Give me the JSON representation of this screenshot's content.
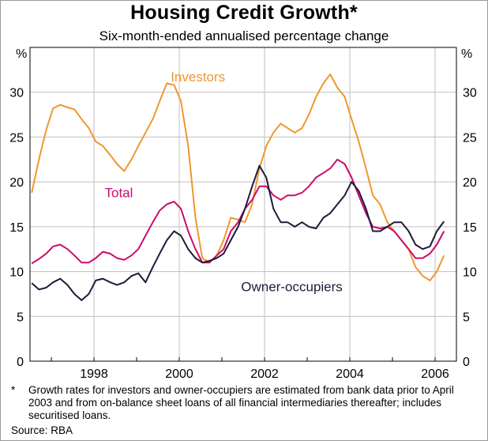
{
  "chart_data": {
    "type": "line",
    "title": "Housing Credit Growth*",
    "subtitle": "Six-month-ended annualised percentage change",
    "ylabel_left": "%",
    "ylabel_right": "%",
    "ylim": [
      0,
      35
    ],
    "yticks": [
      0,
      5,
      10,
      15,
      20,
      25,
      30
    ],
    "xlim": [
      1996.5,
      2006.5
    ],
    "xticks": [
      1998,
      2000,
      2002,
      2004,
      2006
    ],
    "xtick_labels": [
      "1998",
      "2000",
      "2002",
      "2004",
      "2006"
    ],
    "grid": true,
    "series": [
      {
        "name": "Investors",
        "color": "#F0962F",
        "label_x": 1999.8,
        "label_y": 31.2,
        "x": [
          1996.54,
          1996.71,
          1996.88,
          1997.04,
          1997.21,
          1997.38,
          1997.54,
          1997.71,
          1997.88,
          1998.04,
          1998.21,
          1998.38,
          1998.54,
          1998.71,
          1998.88,
          1999.04,
          1999.21,
          1999.38,
          1999.54,
          1999.71,
          1999.88,
          2000.04,
          2000.21,
          2000.38,
          2000.54,
          2000.71,
          2000.88,
          2001.04,
          2001.21,
          2001.38,
          2001.54,
          2001.71,
          2001.88,
          2002.04,
          2002.21,
          2002.38,
          2002.54,
          2002.71,
          2002.88,
          2003.04,
          2003.21,
          2003.38,
          2003.54,
          2003.71,
          2003.88,
          2004.04,
          2004.21,
          2004.38,
          2004.54,
          2004.71,
          2004.88,
          2005.04,
          2005.21,
          2005.38,
          2005.54,
          2005.71,
          2005.88,
          2006.04,
          2006.21
        ],
        "values": [
          18.8,
          22.5,
          25.8,
          28.2,
          28.6,
          28.3,
          28.1,
          27.0,
          26.0,
          24.5,
          24.0,
          23.0,
          22.0,
          21.2,
          22.5,
          24.0,
          25.5,
          27.0,
          29.0,
          31.0,
          30.8,
          29.0,
          24.0,
          16.0,
          11.5,
          11.0,
          11.8,
          13.5,
          16.0,
          15.8,
          15.5,
          17.5,
          21.5,
          24.0,
          25.5,
          26.5,
          26.0,
          25.5,
          26.0,
          27.5,
          29.5,
          31.0,
          32.0,
          30.5,
          29.5,
          27.0,
          24.5,
          21.5,
          18.5,
          17.5,
          15.5,
          14.5,
          13.5,
          12.5,
          10.5,
          9.5,
          9.0,
          10.0,
          11.8
        ]
      },
      {
        "name": "Total",
        "color": "#CC0A6C",
        "label_x": 1998.25,
        "label_y": 18.3,
        "x": [
          1996.54,
          1996.71,
          1996.88,
          1997.04,
          1997.21,
          1997.38,
          1997.54,
          1997.71,
          1997.88,
          1998.04,
          1998.21,
          1998.38,
          1998.54,
          1998.71,
          1998.88,
          1999.04,
          1999.21,
          1999.38,
          1999.54,
          1999.71,
          1999.88,
          2000.04,
          2000.21,
          2000.38,
          2000.54,
          2000.71,
          2000.88,
          2001.04,
          2001.21,
          2001.38,
          2001.54,
          2001.71,
          2001.88,
          2002.04,
          2002.21,
          2002.38,
          2002.54,
          2002.71,
          2002.88,
          2003.04,
          2003.21,
          2003.38,
          2003.54,
          2003.71,
          2003.88,
          2004.04,
          2004.21,
          2004.38,
          2004.54,
          2004.71,
          2004.88,
          2005.04,
          2005.21,
          2005.38,
          2005.54,
          2005.71,
          2005.88,
          2006.04,
          2006.21
        ],
        "values": [
          10.9,
          11.4,
          12.0,
          12.8,
          13.0,
          12.5,
          11.8,
          11.0,
          11.0,
          11.5,
          12.2,
          12.0,
          11.5,
          11.3,
          11.8,
          12.5,
          14.0,
          15.5,
          16.8,
          17.5,
          17.8,
          17.0,
          14.5,
          12.5,
          11.0,
          11.0,
          11.8,
          12.5,
          14.5,
          15.5,
          17.0,
          18.0,
          19.5,
          19.5,
          18.5,
          18.0,
          18.5,
          18.5,
          18.8,
          19.5,
          20.5,
          21.0,
          21.5,
          22.5,
          22.0,
          20.5,
          18.5,
          16.5,
          15.0,
          14.8,
          15.0,
          14.5,
          13.5,
          12.5,
          11.5,
          11.5,
          12.0,
          13.0,
          14.5
        ]
      },
      {
        "name": "Owner-occupiers",
        "color": "#1B1B3A",
        "label_x": 2001.45,
        "label_y": 7.8,
        "x": [
          1996.54,
          1996.71,
          1996.88,
          1997.04,
          1997.21,
          1997.38,
          1997.54,
          1997.71,
          1997.88,
          1998.04,
          1998.21,
          1998.38,
          1998.54,
          1998.71,
          1998.88,
          1999.04,
          1999.21,
          1999.38,
          1999.54,
          1999.71,
          1999.88,
          2000.04,
          2000.21,
          2000.38,
          2000.54,
          2000.71,
          2000.88,
          2001.04,
          2001.21,
          2001.38,
          2001.54,
          2001.71,
          2001.88,
          2002.04,
          2002.21,
          2002.38,
          2002.54,
          2002.71,
          2002.88,
          2003.04,
          2003.21,
          2003.38,
          2003.54,
          2003.71,
          2003.88,
          2004.04,
          2004.21,
          2004.38,
          2004.54,
          2004.71,
          2004.88,
          2005.04,
          2005.21,
          2005.38,
          2005.54,
          2005.71,
          2005.88,
          2006.04,
          2006.21
        ],
        "values": [
          8.7,
          8.0,
          8.2,
          8.8,
          9.2,
          8.5,
          7.5,
          6.8,
          7.5,
          9.0,
          9.2,
          8.8,
          8.5,
          8.8,
          9.5,
          9.8,
          8.8,
          10.5,
          12.0,
          13.5,
          14.5,
          14.0,
          12.5,
          11.5,
          11.0,
          11.2,
          11.5,
          12.0,
          13.5,
          15.0,
          17.0,
          19.5,
          21.8,
          20.5,
          17.0,
          15.5,
          15.5,
          15.0,
          15.5,
          15.0,
          14.8,
          16.0,
          16.5,
          17.5,
          18.5,
          20.0,
          19.0,
          17.0,
          14.5,
          14.5,
          15.0,
          15.5,
          15.5,
          14.5,
          13.0,
          12.5,
          12.8,
          14.5,
          15.6
        ]
      }
    ],
    "footnote_mark": "*",
    "footnote": "Growth rates for investors and owner-occupiers are estimated from bank data prior to April 2003 and from on-balance sheet loans of all financial intermediaries thereafter; includes securitised loans.",
    "source": "Source: RBA"
  }
}
